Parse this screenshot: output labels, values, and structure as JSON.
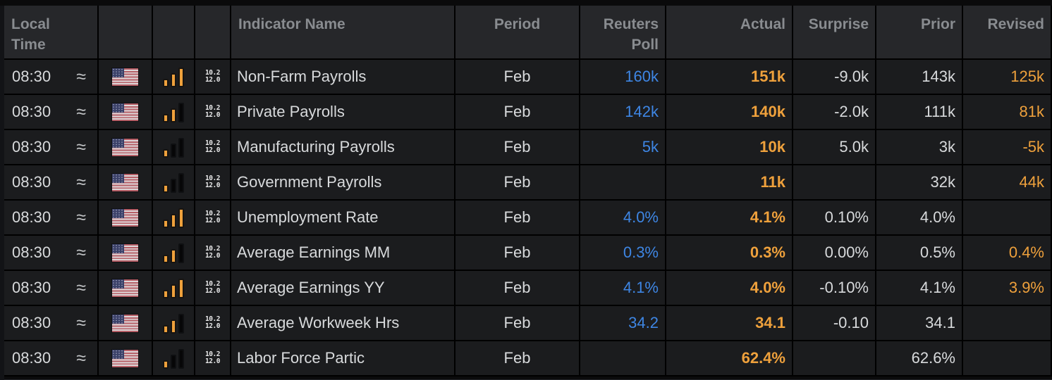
{
  "glyphs": {
    "approx": "≈",
    "details_line1": "10.2",
    "details_line2": "12.0"
  },
  "colors": {
    "row_background": "#1b1c1e",
    "header_background": "#26272a",
    "header_text": "#898c90",
    "text": "#d8dadc",
    "poll_blue": "#3e86e4",
    "actual_orange": "#efa13c",
    "revised_orange": "#efa13c",
    "importance_bar_orange": "#efa13c"
  },
  "table": {
    "header": {
      "local_time": "Local Time",
      "indicator_name": "Indicator Name",
      "period": "Period",
      "reuters_poll": "Reuters Poll",
      "actual": "Actual",
      "surprise": "Surprise",
      "prior": "Prior",
      "revised": "Revised"
    },
    "rows": [
      {
        "time": "08:30",
        "country": "United States",
        "importance": 3,
        "name": "Non-Farm Payrolls",
        "period": "Feb",
        "poll": "160k",
        "actual": "151k",
        "surprise": "-9.0k",
        "prior": "143k",
        "revised": "125k"
      },
      {
        "time": "08:30",
        "country": "United States",
        "importance": 2,
        "name": "Private Payrolls",
        "period": "Feb",
        "poll": "142k",
        "actual": "140k",
        "surprise": "-2.0k",
        "prior": "111k",
        "revised": "81k"
      },
      {
        "time": "08:30",
        "country": "United States",
        "importance": 1,
        "name": "Manufacturing Payrolls",
        "period": "Feb",
        "poll": "5k",
        "actual": "10k",
        "surprise": "5.0k",
        "prior": "3k",
        "revised": "-5k"
      },
      {
        "time": "08:30",
        "country": "United States",
        "importance": 1,
        "name": "Government Payrolls",
        "period": "Feb",
        "poll": "",
        "actual": "11k",
        "surprise": "",
        "prior": "32k",
        "revised": "44k"
      },
      {
        "time": "08:30",
        "country": "United States",
        "importance": 3,
        "name": "Unemployment Rate",
        "period": "Feb",
        "poll": "4.0%",
        "actual": "4.1%",
        "surprise": "0.10%",
        "prior": "4.0%",
        "revised": ""
      },
      {
        "time": "08:30",
        "country": "United States",
        "importance": 2,
        "name": "Average Earnings MM",
        "period": "Feb",
        "poll": "0.3%",
        "actual": "0.3%",
        "surprise": "0.00%",
        "prior": "0.5%",
        "revised": "0.4%"
      },
      {
        "time": "08:30",
        "country": "United States",
        "importance": 3,
        "name": "Average Earnings YY",
        "period": "Feb",
        "poll": "4.1%",
        "actual": "4.0%",
        "surprise": "-0.10%",
        "prior": "4.1%",
        "revised": "3.9%"
      },
      {
        "time": "08:30",
        "country": "United States",
        "importance": 2,
        "name": "Average Workweek Hrs",
        "period": "Feb",
        "poll": "34.2",
        "actual": "34.1",
        "surprise": "-0.10",
        "prior": "34.1",
        "revised": ""
      },
      {
        "time": "08:30",
        "country": "United States",
        "importance": 1,
        "name": "Labor Force Partic",
        "period": "Feb",
        "poll": "",
        "actual": "62.4%",
        "surprise": "",
        "prior": "62.6%",
        "revised": ""
      }
    ]
  }
}
